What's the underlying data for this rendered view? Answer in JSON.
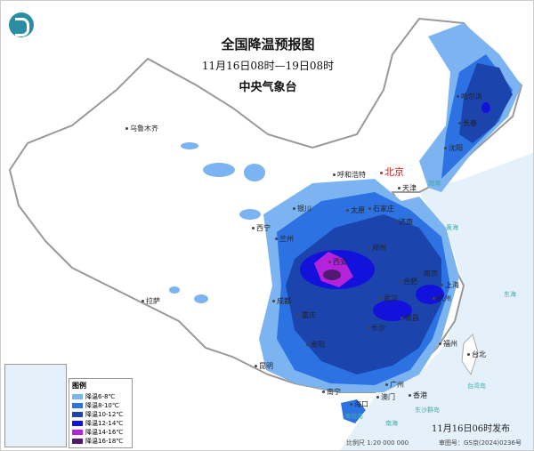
{
  "header": {
    "title": "全国降温预报图",
    "period": "11月16日08时—19日08时",
    "issuer": "中央气象台",
    "logo_icon": "cma-logo-icon"
  },
  "legend": {
    "title": "图例",
    "items": [
      {
        "label": "降温6-8℃",
        "color": "#7cb4f2"
      },
      {
        "label": "降温8-10℃",
        "color": "#2d72e2"
      },
      {
        "label": "降温10-12℃",
        "color": "#1b44ad"
      },
      {
        "label": "降温12-14℃",
        "color": "#1212dc"
      },
      {
        "label": "降温14-16℃",
        "color": "#b522dc"
      },
      {
        "label": "降温16-18℃",
        "color": "#50186e"
      }
    ]
  },
  "cities": {
    "capital": "北京",
    "list": [
      "乌鲁木齐",
      "哈尔滨",
      "长春",
      "沈阳",
      "呼和浩特",
      "天津",
      "银川",
      "太原",
      "石家庄",
      "济南",
      "西宁",
      "兰州",
      "郑州",
      "西安",
      "合肥",
      "南京",
      "上海",
      "杭州",
      "武汉",
      "南昌",
      "长沙",
      "成都",
      "重庆",
      "贵阳",
      "昆明",
      "拉萨",
      "福州",
      "台北",
      "广州",
      "香港",
      "澳门",
      "南宁",
      "海口"
    ]
  },
  "seas": [
    "渤海",
    "黄海",
    "东海",
    "台湾岛",
    "东沙群岛",
    "海南岛",
    "南海"
  ],
  "footer": {
    "published": "11月16日06时发布",
    "scale": "比例尺 1:20 000 000",
    "map_number": "审图号：GS京(2024)0236号"
  }
}
